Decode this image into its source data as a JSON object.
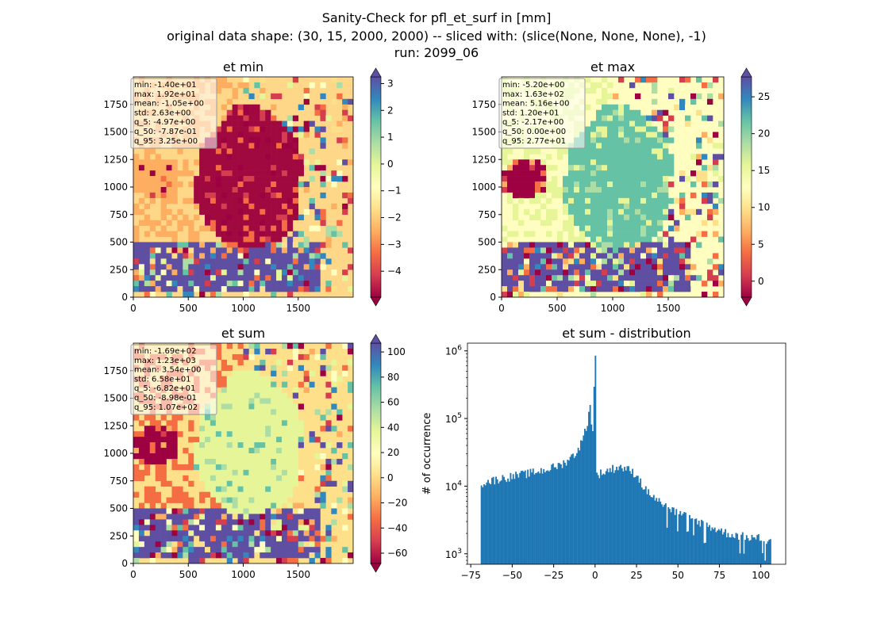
{
  "figure_title": {
    "line1": "Sanity-Check for pfl_et_surf in [mm]",
    "line2": "original data shape: (30, 15, 2000, 2000) -- sliced with: (slice(None, None, None), -1)",
    "line3": "run: 2099_06"
  },
  "colors": {
    "spectral": [
      "#9e0142",
      "#d53e4f",
      "#f46d43",
      "#fdae61",
      "#fee08b",
      "#ffffbf",
      "#e6f598",
      "#abdda4",
      "#66c2a5",
      "#3288bd",
      "#5e4fa2"
    ],
    "hist_bar": "#1f77b4"
  },
  "chart_data": [
    {
      "type": "heatmap",
      "title": "et min",
      "xlim": [
        0,
        2000
      ],
      "ylim": [
        0,
        2000
      ],
      "xticks": [
        "0",
        "500",
        "1000",
        "1500"
      ],
      "yticks": [
        "0",
        "250",
        "500",
        "750",
        "1000",
        "1250",
        "1500",
        "1750"
      ],
      "colorbar": {
        "min": -4.97,
        "max": 3.25,
        "ticks": [
          "3",
          "2",
          "1",
          "0",
          "−1",
          "−2",
          "−3",
          "−4"
        ],
        "tick_values": [
          3,
          2,
          1,
          0,
          -1,
          -2,
          -3,
          -4
        ]
      },
      "stats": [
        "min: -1.40e+01",
        "max: 1.92e+01",
        "mean: -1.05e+00",
        "std: 2.63e+00",
        "q_5: -4.97e+00",
        "q_50: -7.87e-01",
        "q_95: 3.25e+00"
      ],
      "palette": {
        "background": "#fed788",
        "outside": "#fdae61",
        "land": "#a0093f",
        "band": "#5e4fa2"
      }
    },
    {
      "type": "heatmap",
      "title": "et max",
      "xlim": [
        0,
        2000
      ],
      "ylim": [
        0,
        2000
      ],
      "xticks": [
        "0",
        "500",
        "1000",
        "1500"
      ],
      "yticks": [
        "0",
        "250",
        "500",
        "750",
        "1000",
        "1250",
        "1500",
        "1750"
      ],
      "colorbar": {
        "min": -2.17,
        "max": 27.7,
        "ticks": [
          "25",
          "20",
          "15",
          "10",
          "5",
          "0"
        ],
        "tick_values": [
          25,
          20,
          15,
          10,
          5,
          0
        ]
      },
      "stats": [
        "min: -5.20e+00",
        "max: 1.63e+02",
        "mean: 5.16e+00",
        "std: 1.20e+01",
        "q_5: -2.17e+00",
        "q_50: 0.00e+00",
        "q_95: 2.77e+01"
      ],
      "palette": {
        "background": "#fffdc0",
        "outside": "#e6f598",
        "land": "#66c2a5",
        "band": "#5e4fa2"
      }
    },
    {
      "type": "heatmap",
      "title": "et sum",
      "xlim": [
        0,
        2000
      ],
      "ylim": [
        0,
        2000
      ],
      "xticks": [
        "0",
        "500",
        "1000",
        "1500"
      ],
      "yticks": [
        "0",
        "250",
        "500",
        "750",
        "1000",
        "1250",
        "1500",
        "1750"
      ],
      "colorbar": {
        "min": -68.2,
        "max": 107,
        "ticks": [
          "100",
          "80",
          "60",
          "40",
          "20",
          "0",
          "−20",
          "−40",
          "−60"
        ],
        "tick_values": [
          100,
          80,
          60,
          40,
          20,
          0,
          -20,
          -40,
          -60
        ]
      },
      "stats": [
        "min: -1.69e+02",
        "max: 1.23e+03",
        "mean: 3.54e+00",
        "std: 6.58e+01",
        "q_5: -6.82e+01",
        "q_50: -8.98e-01",
        "q_95: 1.07e+02"
      ],
      "palette": {
        "background": "#fee08b",
        "outside": "#f46d43",
        "land": "#e6f598",
        "band": "#5e4fa2"
      }
    },
    {
      "type": "bar",
      "title": "et sum - distribution",
      "ylabel": "# of occurrence",
      "xlabel": "",
      "yscale": "log",
      "xlim": [
        -77,
        115
      ],
      "ylim": [
        700,
        1300000
      ],
      "xticks": [
        -75,
        -50,
        -25,
        0,
        25,
        50,
        75,
        100
      ],
      "xtick_labels": [
        "−75",
        "−50",
        "−25",
        "0",
        "25",
        "50",
        "75",
        "100"
      ],
      "ytick_labels": [
        "10",
        "10",
        "10",
        "10"
      ],
      "ytick_exponents": [
        "3",
        "4",
        "5",
        "6"
      ],
      "ytick_values": [
        1000,
        10000,
        100000,
        1000000
      ],
      "bin_range": [
        -69,
        106
      ],
      "anchors": [
        [
          -69,
          11000
        ],
        [
          -60,
          12500
        ],
        [
          -50,
          14000
        ],
        [
          -40,
          15500
        ],
        [
          -30,
          17500
        ],
        [
          -20,
          21000
        ],
        [
          -12,
          30000
        ],
        [
          -8,
          45000
        ],
        [
          -5,
          80000
        ],
        [
          -3,
          150000
        ],
        [
          -1.5,
          60000
        ],
        [
          0,
          850000
        ],
        [
          1,
          15000
        ],
        [
          5,
          16000
        ],
        [
          10,
          18000
        ],
        [
          15,
          19500
        ],
        [
          20,
          17500
        ],
        [
          25,
          15000
        ],
        [
          30,
          9000
        ],
        [
          40,
          5500
        ],
        [
          50,
          4000
        ],
        [
          60,
          3200
        ],
        [
          70,
          2500
        ],
        [
          80,
          2000
        ],
        [
          90,
          1800
        ],
        [
          100,
          1700
        ],
        [
          106,
          1500
        ]
      ]
    }
  ]
}
